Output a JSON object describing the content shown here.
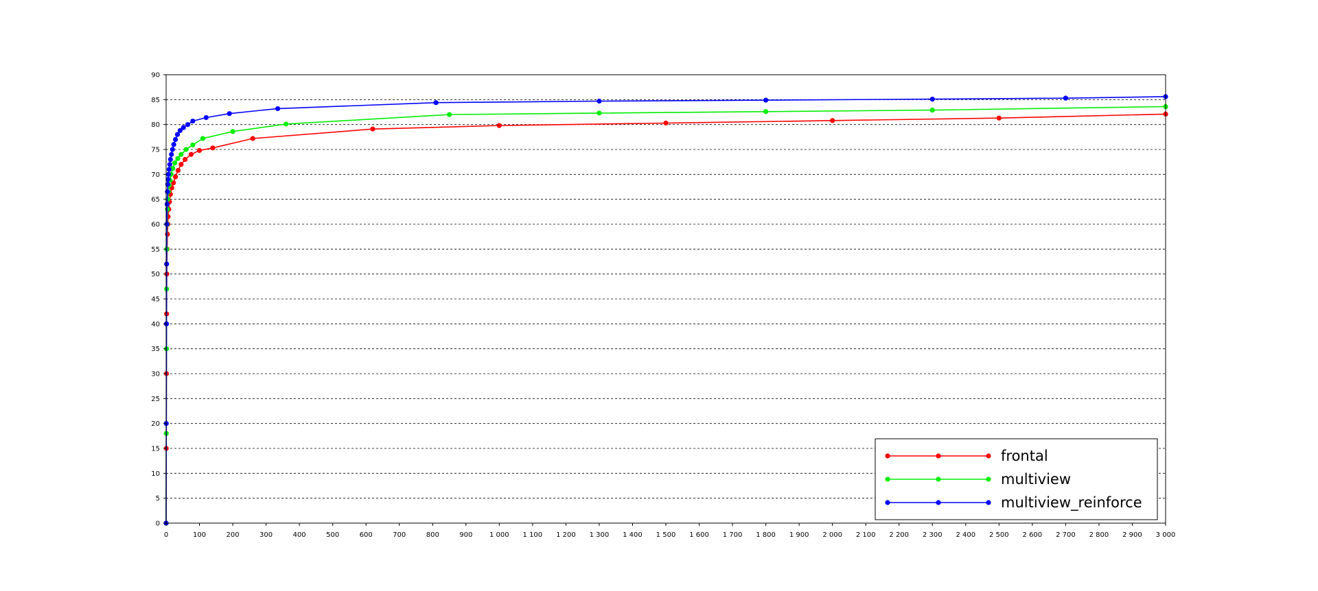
{
  "chart_data": {
    "type": "line",
    "title": "",
    "xlabel": "",
    "ylabel": "",
    "xlim": [
      0,
      3000
    ],
    "ylim": [
      0,
      90
    ],
    "x_ticks": [
      0,
      100,
      200,
      300,
      400,
      500,
      600,
      700,
      800,
      900,
      1000,
      1100,
      1200,
      1300,
      1400,
      1500,
      1600,
      1700,
      1800,
      1900,
      2000,
      2100,
      2200,
      2300,
      2400,
      2500,
      2600,
      2700,
      2800,
      2900,
      3000
    ],
    "x_tick_labels": [
      "0",
      "100",
      "200",
      "300",
      "400",
      "500",
      "600",
      "700",
      "800",
      "900",
      "1 000",
      "1 100",
      "1 200",
      "1 300",
      "1 400",
      "1 500",
      "1 600",
      "1 700",
      "1 800",
      "1 900",
      "2 000",
      "2 100",
      "2 200",
      "2 300",
      "2 400",
      "2 500",
      "2 600",
      "2 700",
      "2 800",
      "2 900",
      "3 000"
    ],
    "y_ticks": [
      0,
      5,
      10,
      15,
      20,
      25,
      30,
      35,
      40,
      45,
      50,
      55,
      60,
      65,
      70,
      75,
      80,
      85,
      90
    ],
    "y_tick_labels": [
      "0",
      "5",
      "10",
      "15",
      "20",
      "25",
      "30",
      "35",
      "40",
      "45",
      "50",
      "55",
      "60",
      "65",
      "70",
      "75",
      "80",
      "85",
      "90"
    ],
    "grid": "horizontal-dashed",
    "legend_position": "bottom-right",
    "series": [
      {
        "name": "frontal",
        "color": "#ff0000",
        "x": [
          0,
          0.5,
          1,
          1.5,
          2,
          3,
          4,
          5,
          6,
          8,
          10,
          13,
          17,
          22,
          28,
          36,
          45,
          57,
          75,
          100,
          140,
          260,
          620,
          1000,
          1500,
          2000,
          2500,
          3000
        ],
        "y": [
          0,
          15,
          30,
          42,
          50,
          55,
          58,
          60,
          61.5,
          63,
          64.5,
          66,
          67.3,
          68.3,
          69.5,
          70.8,
          72,
          73,
          74,
          74.8,
          75.3,
          77.2,
          79.1,
          79.8,
          80.3,
          80.8,
          81.3,
          82.1
        ]
      },
      {
        "name": "multiview",
        "color": "#00ee00",
        "x": [
          0,
          0.5,
          1,
          1.5,
          2,
          3,
          4,
          5,
          7,
          9,
          12,
          15,
          20,
          26,
          35,
          45,
          60,
          80,
          110,
          200,
          360,
          850,
          1300,
          1800,
          2300,
          3000
        ],
        "y": [
          0,
          18,
          35,
          47,
          55,
          60,
          63,
          65,
          66.5,
          67.8,
          68.8,
          70,
          71.2,
          72.3,
          73.2,
          74,
          75,
          75.9,
          77.2,
          78.6,
          80.1,
          82,
          82.3,
          82.6,
          82.9,
          83.6
        ]
      },
      {
        "name": "multiview_reinforce",
        "color": "#0000ff",
        "x": [
          0,
          0.5,
          1,
          1.5,
          2,
          3,
          4,
          5,
          6,
          7,
          9,
          11,
          13,
          16,
          19,
          23,
          28,
          34,
          42,
          52,
          65,
          80,
          120,
          190,
          335,
          810,
          1300,
          1800,
          2300,
          2700,
          3000
        ],
        "y": [
          0,
          20,
          40,
          52,
          60,
          64,
          66.5,
          68,
          69,
          70,
          71,
          72,
          73,
          74,
          75,
          76,
          77,
          78,
          78.8,
          79.4,
          80,
          80.7,
          81.4,
          82.2,
          83.2,
          84.4,
          84.7,
          84.9,
          85.1,
          85.3,
          85.6
        ]
      }
    ]
  }
}
